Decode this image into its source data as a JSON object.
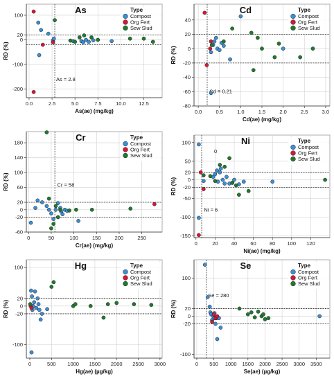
{
  "colors": {
    "Compost": "#3a8fd6",
    "Org Fert": "#d9143a",
    "Sew Slud": "#1f7a2b"
  },
  "legend": {
    "title": "Type",
    "entries": [
      "Compost",
      "Org Fert",
      "Sew Slud"
    ]
  },
  "chart_data": [
    {
      "type": "scatter",
      "title": "As",
      "xlabel": "As(ae) (mg/kg)",
      "ylabel": "RD (%)",
      "xlim": [
        -0.3,
        14.5
      ],
      "ylim": [
        -235,
        145
      ],
      "xticks": [
        0.0,
        2.5,
        5.0,
        7.5,
        10.0,
        12.5
      ],
      "xtick_labels": [
        "0.0",
        "2.5",
        "5.0",
        "7.5",
        "10.0",
        "12.5"
      ],
      "yticks": [
        -200,
        -100,
        0,
        20,
        100
      ],
      "ytick_labels": [
        "-200",
        "-100",
        "0",
        "20",
        "100"
      ],
      "hlines": [
        20,
        -20
      ],
      "vline": 2.8,
      "vline_label": "As = 2.8",
      "vline_label_pos": [
        2.8,
        -168
      ],
      "series": [
        {
          "name": "Compost",
          "points": [
            [
              1,
              70
            ],
            [
              1.3,
              40
            ],
            [
              1.1,
              -62
            ],
            [
              2.1,
              25
            ],
            [
              2.6,
              -2
            ],
            [
              2.7,
              5
            ],
            [
              4.8,
              -5
            ],
            [
              5.7,
              -5
            ],
            [
              5.9,
              -10
            ],
            [
              6.2,
              0
            ],
            [
              6.5,
              -8
            ],
            [
              7.0,
              -2
            ],
            [
              9.0,
              -5
            ]
          ]
        },
        {
          "name": "Org Fert",
          "points": [
            [
              0.5,
              115
            ],
            [
              1.5,
              -20
            ],
            [
              0.5,
              -212
            ],
            [
              2.6,
              -10
            ]
          ]
        },
        {
          "name": "Sew Slud",
          "points": [
            [
              2.8,
              80
            ],
            [
              4.5,
              -3
            ],
            [
              5.0,
              -8
            ],
            [
              5.5,
              10
            ],
            [
              6.0,
              18
            ],
            [
              6.8,
              10
            ],
            [
              7.5,
              0
            ],
            [
              11.0,
              5
            ],
            [
              12.5,
              5
            ],
            [
              13.5,
              -8
            ]
          ]
        }
      ]
    },
    {
      "type": "scatter",
      "title": "Cd",
      "xlabel": "Cd(ae) (mg/kg)",
      "ylabel": "RD (%)",
      "xlim": [
        -0.1,
        3.1
      ],
      "ylim": [
        -80,
        62
      ],
      "xticks": [
        0.0,
        0.5,
        1.0,
        1.5,
        2.0,
        2.5,
        3.0
      ],
      "xtick_labels": [
        "0.0",
        "0.5",
        "1.0",
        "1.5",
        "2.0",
        "2.5",
        "3.0"
      ],
      "yticks": [
        -80,
        -60,
        -40,
        -20,
        0,
        20,
        40
      ],
      "ytick_labels": [
        "-80",
        "-60",
        "-40",
        "-20",
        "0",
        "20",
        "40"
      ],
      "hlines": [
        20,
        -20
      ],
      "vline": 0.21,
      "vline_label": "Cd = 0.21",
      "vline_label_pos": [
        0.23,
        -62
      ],
      "series": [
        {
          "name": "Compost",
          "points": [
            [
              0.3,
              -5
            ],
            [
              0.35,
              5
            ],
            [
              0.38,
              10
            ],
            [
              0.42,
              15
            ],
            [
              0.45,
              0
            ],
            [
              0.5,
              -2
            ],
            [
              0.55,
              8
            ],
            [
              0.6,
              4
            ],
            [
              0.75,
              -15
            ],
            [
              0.3,
              -62
            ],
            [
              1.0,
              45
            ],
            [
              2.0,
              0
            ]
          ]
        },
        {
          "name": "Org Fert",
          "points": [
            [
              0.15,
              50
            ],
            [
              0.2,
              -23
            ],
            [
              0.28,
              0
            ],
            [
              0.3,
              10
            ]
          ]
        },
        {
          "name": "Sew Slud",
          "points": [
            [
              0.32,
              5
            ],
            [
              0.6,
              10
            ],
            [
              0.8,
              28
            ],
            [
              1.25,
              22
            ],
            [
              1.3,
              -30
            ],
            [
              1.4,
              15
            ],
            [
              1.5,
              0
            ],
            [
              1.8,
              -12
            ],
            [
              1.9,
              7
            ],
            [
              2.4,
              -12
            ],
            [
              2.7,
              0
            ]
          ]
        }
      ]
    },
    {
      "type": "scatter",
      "title": "Cr",
      "xlabel": "Cr(ae) (mg/kg)",
      "ylabel": "RD (%)",
      "xlim": [
        -5,
        295
      ],
      "ylim": [
        -60,
        210
      ],
      "xticks": [
        0,
        50,
        100,
        150,
        200,
        250
      ],
      "xtick_labels": [
        "0",
        "50",
        "100",
        "150",
        "200",
        "250"
      ],
      "yticks": [
        -60,
        -20,
        0,
        20,
        60,
        100,
        140,
        180
      ],
      "ytick_labels": [
        "-60",
        "-20",
        "0",
        "20",
        "60",
        "100",
        "140",
        "180"
      ],
      "hlines": [
        20,
        -20
      ],
      "vline": 58,
      "vline_label": "Cr = 58",
      "vline_label_pos": [
        60,
        62
      ],
      "series": [
        {
          "name": "Compost",
          "points": [
            [
              5,
              -35
            ],
            [
              15,
              5
            ],
            [
              20,
              25
            ],
            [
              30,
              20
            ],
            [
              40,
              10
            ],
            [
              45,
              0
            ],
            [
              50,
              -10
            ],
            [
              55,
              -25
            ],
            [
              60,
              0
            ],
            [
              65,
              18
            ],
            [
              70,
              5
            ],
            [
              72,
              -5
            ],
            [
              75,
              -12
            ],
            [
              80,
              0
            ],
            [
              85,
              -3
            ],
            [
              110,
              -30
            ]
          ]
        },
        {
          "name": "Org Fert",
          "points": [
            [
              278,
              15
            ]
          ]
        },
        {
          "name": "Sew Slud",
          "points": [
            [
              40,
              208
            ],
            [
              45,
              30
            ],
            [
              50,
              -50
            ],
            [
              55,
              -38
            ],
            [
              60,
              10
            ],
            [
              65,
              -20
            ],
            [
              70,
              0
            ],
            [
              90,
              -2
            ],
            [
              105,
              0
            ],
            [
              140,
              0
            ],
            [
              225,
              3
            ]
          ]
        }
      ]
    },
    {
      "type": "scatter",
      "title": "Ni",
      "xlabel": "Ni(ae) (mg/kg)",
      "ylabel": "RD (%)",
      "xlim": [
        -2,
        140
      ],
      "ylim": [
        -155,
        120
      ],
      "xticks": [
        0,
        20,
        40,
        60,
        80,
        100,
        120
      ],
      "xtick_labels": [
        "0",
        "20",
        "40",
        "60",
        "80",
        "100",
        "120"
      ],
      "yticks": [
        -150,
        -100,
        -50,
        -20,
        0,
        20,
        50,
        100
      ],
      "ytick_labels": [
        "-150",
        "-100",
        "-50",
        "-20",
        "0",
        "20",
        "50",
        "100"
      ],
      "hlines": [
        20,
        -20
      ],
      "vline": 6,
      "vline_label": "Ni = 6",
      "vline_label_pos": [
        7,
        -85
      ],
      "annotations": [
        {
          "text": "0",
          "x": 19,
          "y": 72
        }
      ],
      "series": [
        {
          "name": "Compost",
          "points": [
            [
              3,
              95
            ],
            [
              8,
              -3
            ],
            [
              18,
              8
            ],
            [
              20,
              15
            ],
            [
              22,
              25
            ],
            [
              23,
              -5
            ],
            [
              25,
              20
            ],
            [
              26,
              30
            ],
            [
              28,
              0
            ],
            [
              30,
              -10
            ],
            [
              32,
              8
            ],
            [
              35,
              -10
            ],
            [
              38,
              -8
            ],
            [
              40,
              0
            ],
            [
              45,
              -12
            ],
            [
              50,
              -5
            ],
            [
              80,
              -5
            ],
            [
              3,
              -102
            ]
          ]
        },
        {
          "name": "Org Fert",
          "points": [
            [
              5,
              20
            ],
            [
              8,
              -25
            ],
            [
              3,
              -148
            ]
          ]
        },
        {
          "name": "Sew Slud",
          "points": [
            [
              8,
              12
            ],
            [
              15,
              10
            ],
            [
              20,
              -3
            ],
            [
              25,
              40
            ],
            [
              30,
              35
            ],
            [
              35,
              58
            ],
            [
              38,
              -8
            ],
            [
              42,
              -15
            ],
            [
              45,
              -40
            ],
            [
              55,
              -30
            ],
            [
              135,
              0
            ]
          ]
        }
      ]
    },
    {
      "type": "scatter",
      "title": "Hg",
      "xlabel": "Hg(ae) (µg/kg)",
      "ylabel": "RD (%)",
      "xlim": [
        -80,
        3050
      ],
      "ylim": [
        -135,
        120
      ],
      "xticks": [
        0,
        500,
        1000,
        1500,
        2000,
        2500,
        3000
      ],
      "xtick_labels": [
        "0",
        "500",
        "1000",
        "1500",
        "2000",
        "2500",
        "3000"
      ],
      "yticks": [
        -100,
        -20,
        0,
        20,
        100
      ],
      "ytick_labels": [
        "-100",
        "-20",
        "0",
        "20",
        "100"
      ],
      "hlines": [
        20,
        -20
      ],
      "vline": null,
      "vline_label": "",
      "series": [
        {
          "name": "Compost",
          "points": [
            [
              30,
              40
            ],
            [
              50,
              25
            ],
            [
              60,
              -10
            ],
            [
              80,
              0
            ],
            [
              100,
              10
            ],
            [
              120,
              38
            ],
            [
              150,
              -5
            ],
            [
              180,
              20
            ],
            [
              200,
              5
            ],
            [
              220,
              -10
            ],
            [
              250,
              -35
            ],
            [
              280,
              -20
            ],
            [
              400,
              -8
            ],
            [
              40,
              -120
            ]
          ]
        },
        {
          "name": "Org Fert",
          "points": [
            [
              20,
              0
            ],
            [
              40,
              -5
            ]
          ]
        },
        {
          "name": "Sew Slud",
          "points": [
            [
              10,
              5
            ],
            [
              500,
              50
            ],
            [
              550,
              62
            ],
            [
              1000,
              0
            ],
            [
              1050,
              5
            ],
            [
              1400,
              0
            ],
            [
              1700,
              -30
            ],
            [
              1800,
              5
            ],
            [
              2000,
              8
            ],
            [
              2400,
              5
            ],
            [
              2800,
              3
            ]
          ]
        }
      ]
    },
    {
      "type": "scatter",
      "title": "Se",
      "xlabel": "Se(ae) (µg/kg)",
      "ylabel": "RD (%)",
      "xlim": [
        -80,
        3900
      ],
      "ylim": [
        -110,
        148
      ],
      "xticks": [
        0,
        500,
        1000,
        1500,
        2000,
        2500,
        3000,
        3500
      ],
      "xtick_labels": [
        "0",
        "500",
        "1000",
        "1500",
        "2000",
        "2500",
        "3000",
        "3500"
      ],
      "yticks": [
        -100,
        -20,
        0,
        20,
        100
      ],
      "ytick_labels": [
        "-100",
        "-20",
        "0",
        "20",
        "100"
      ],
      "hlines": [
        20,
        -20
      ],
      "vline": 280,
      "vline_label": "Se = 280",
      "vline_label_pos": [
        290,
        50
      ],
      "series": [
        {
          "name": "Compost",
          "points": [
            [
              240,
              135
            ],
            [
              320,
              50
            ],
            [
              380,
              25
            ],
            [
              400,
              10
            ],
            [
              420,
              5
            ],
            [
              450,
              -10
            ],
            [
              480,
              0
            ],
            [
              500,
              -5
            ],
            [
              520,
              8
            ],
            [
              550,
              -20
            ],
            [
              580,
              -5
            ],
            [
              600,
              -60
            ],
            [
              650,
              -5
            ],
            [
              700,
              -30
            ],
            [
              3600,
              0
            ]
          ]
        },
        {
          "name": "Org Fert",
          "points": [
            [
              450,
              -15
            ],
            [
              500,
              5
            ],
            [
              550,
              -5
            ],
            [
              600,
              0
            ]
          ]
        },
        {
          "name": "Sew Slud",
          "points": [
            [
              1250,
              20
            ],
            [
              1500,
              5
            ],
            [
              1600,
              10
            ],
            [
              1700,
              -3
            ],
            [
              1800,
              12
            ],
            [
              1900,
              0
            ],
            [
              1950,
              5
            ],
            [
              2000,
              -8
            ],
            [
              2100,
              -5
            ]
          ]
        }
      ]
    }
  ]
}
